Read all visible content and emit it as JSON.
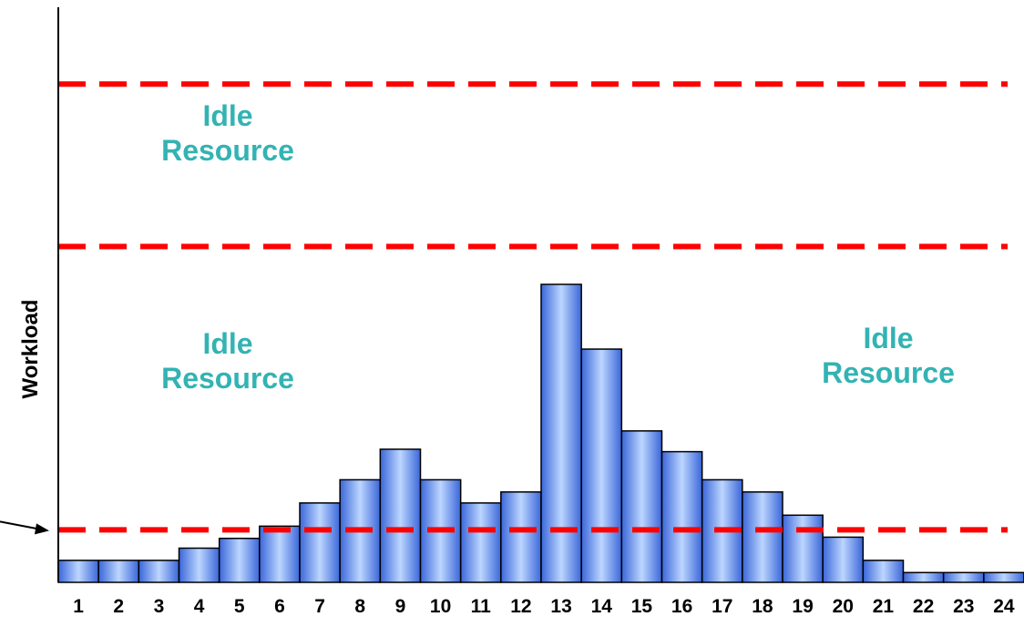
{
  "chart_data": {
    "type": "bar",
    "title": "",
    "xlabel": "",
    "ylabel": "Workload",
    "categories": [
      "1",
      "2",
      "3",
      "4",
      "5",
      "6",
      "7",
      "8",
      "9",
      "10",
      "11",
      "12",
      "13",
      "14",
      "15",
      "16",
      "17",
      "18",
      "19",
      "20",
      "21",
      "22",
      "23",
      "24"
    ],
    "values": [
      1.8,
      1.8,
      1.8,
      2.8,
      3.6,
      4.6,
      6.5,
      8.4,
      10.9,
      8.4,
      6.5,
      7.4,
      24.4,
      19.1,
      12.4,
      10.7,
      8.4,
      7.4,
      5.5,
      3.7,
      1.8,
      0.8,
      0.8,
      0.8
    ],
    "ylim": [
      0,
      42
    ],
    "reference_lines": [
      {
        "y": 4.3,
        "color": "#ff0000",
        "style": "dashed"
      },
      {
        "y": 27.5,
        "color": "#ff0000",
        "style": "dashed"
      },
      {
        "y": 40.8,
        "color": "#ff0000",
        "style": "dashed"
      }
    ],
    "annotations": [
      {
        "line1": "Idle",
        "line2": "Resource"
      },
      {
        "line1": "Idle",
        "line2": "Resource"
      },
      {
        "line1": "Idle",
        "line2": "Resource"
      }
    ],
    "bar_color": "#80aaff",
    "annotation_color": "#33b3b3",
    "grid": false
  }
}
